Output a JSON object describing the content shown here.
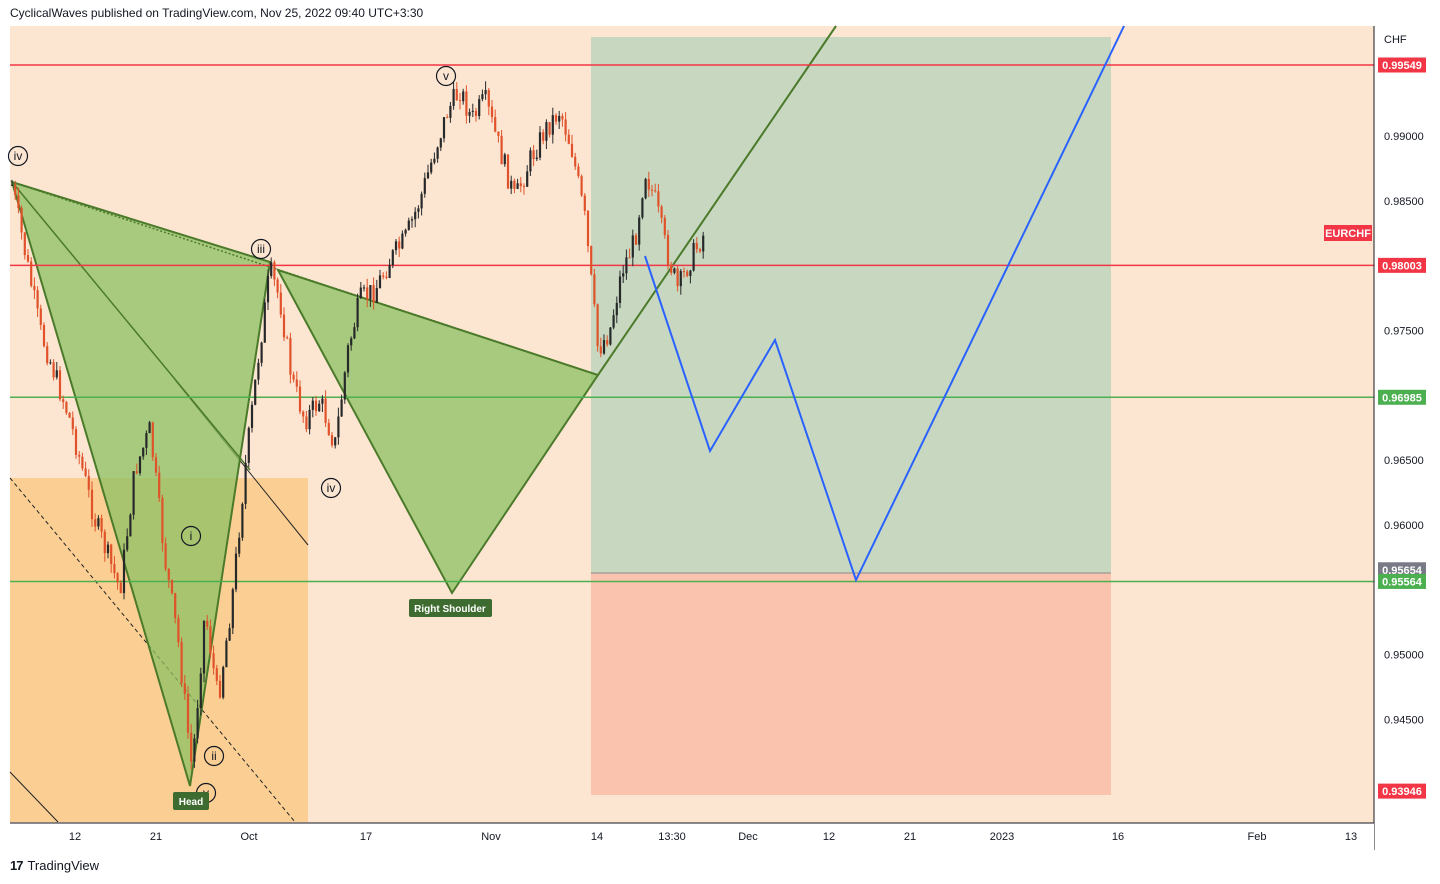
{
  "header": {
    "text": "CyclicalWaves published on TradingView.com, Nov 25, 2022 09:40 UTC+3:30"
  },
  "footer": {
    "logo": "17",
    "brand": "TradingView"
  },
  "chart_data": {
    "type": "candlestick",
    "symbol": "EURCHF",
    "currency": "CHF",
    "ylim": [
      0.937,
      0.9985
    ],
    "y_ticks": [
      0.99,
      0.985,
      0.975,
      0.965,
      0.96,
      0.95,
      0.945
    ],
    "y_tick_labels": [
      "0.99000",
      "0.98500",
      "0.97500",
      "0.96500",
      "0.96000",
      "0.95000",
      "0.94500"
    ],
    "x_tick_labels": [
      "12",
      "21",
      "Oct",
      "17",
      "Nov",
      "14",
      "13:30",
      "Dec",
      "12",
      "21",
      "2023",
      "16",
      "Feb",
      "13"
    ],
    "price_labels": [
      {
        "value": 0.99549,
        "text": "0.99549",
        "color": "#f23645"
      },
      {
        "value": 0.98003,
        "text": "0.98003",
        "color": "#f23645"
      },
      {
        "value": 0.96985,
        "text": "0.96985",
        "color": "#4caf50"
      },
      {
        "value": 0.95654,
        "text": "0.95654",
        "color": "#787b86"
      },
      {
        "value": 0.95564,
        "text": "0.95564",
        "color": "#4caf50"
      },
      {
        "value": 0.93946,
        "text": "0.93946",
        "color": "#f23645"
      }
    ],
    "horizontal_lines": [
      {
        "value": 0.99549,
        "color": "#f23645"
      },
      {
        "value": 0.98003,
        "color": "#f23645"
      },
      {
        "value": 0.96985,
        "color": "#4caf50"
      },
      {
        "value": 0.95564,
        "color": "#4caf50"
      }
    ],
    "symbol_tag": {
      "text": "EURCHF",
      "value": 0.9826,
      "color": "#f23645"
    },
    "wave_labels": [
      "iv",
      "iii",
      "v",
      "iv",
      "i",
      "ii",
      "v"
    ],
    "pattern_labels": {
      "head": "Head",
      "right_shoulder": "Right Shoulder"
    },
    "colors": {
      "background": "#fce6d1",
      "pattern_fill": "#8cc063",
      "pattern_stroke": "#4a7a2a",
      "candle_up": "#26282a",
      "candle_down": "#e0522a",
      "projection": "#2962ff",
      "target_zone": "#c8d8c0",
      "stop_zone": "#f9c3ae",
      "channel_fill": "#fbcf94"
    }
  }
}
